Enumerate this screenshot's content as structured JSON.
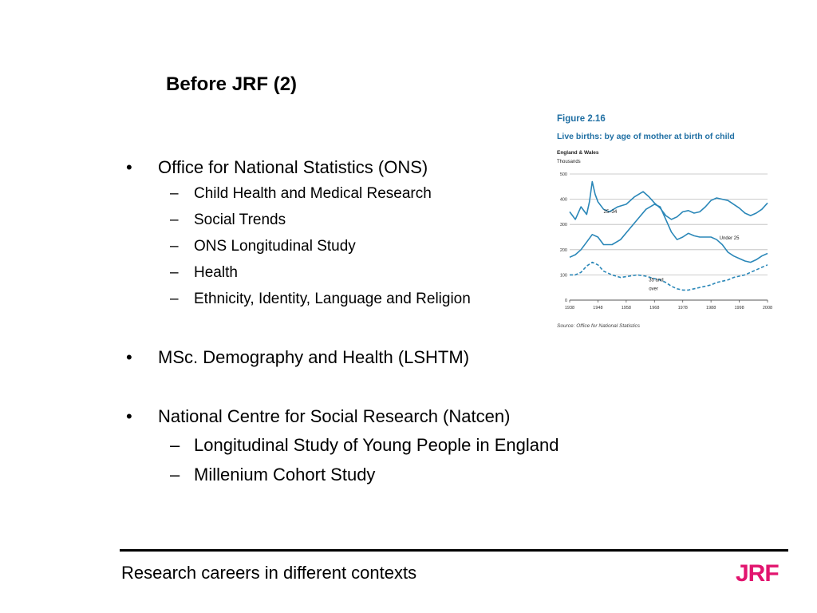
{
  "slide": {
    "title": "Before JRF (2)",
    "bullets": [
      {
        "text": "Office for National Statistics (ONS)",
        "subs": [
          "Child Health and Medical Research",
          "Social Trends",
          "ONS Longitudinal Study",
          "Health",
          "Ethnicity, Identity, Language and Religion"
        ]
      },
      {
        "text": "MSc. Demography and Health (LSHTM)",
        "subs": []
      },
      {
        "text": "National Centre for Social Research (Natcen)",
        "subs": [
          "Longitudinal Study of Young People in England",
          "Millenium Cohort Study"
        ]
      }
    ],
    "bullet_glyph": "•",
    "dash_glyph": "–"
  },
  "footer": {
    "text": "Research careers in different contexts",
    "logo": "JRF"
  },
  "chart_data": {
    "type": "line",
    "figure_label": "Figure 2.16",
    "title": "Live births: by age of mother at birth of child",
    "subtitle": "England & Wales",
    "ylabel": "Thousands",
    "ylim": [
      0,
      500
    ],
    "xlim": [
      1938,
      2008
    ],
    "xticks": [
      "1938",
      "1948",
      "1958",
      "1968",
      "1978",
      "1988",
      "1998",
      "2008"
    ],
    "yticks": [
      "0",
      "100",
      "200",
      "300",
      "400",
      "500"
    ],
    "grid": true,
    "source": "Source: Office for National Statistics",
    "colors": {
      "line": "#2a87b8",
      "title": "#1f6fa3",
      "grid": "#bbbbbb"
    },
    "series": [
      {
        "name": "25–34",
        "style": "solid",
        "x": [
          1938,
          1940,
          1942,
          1944,
          1945,
          1946,
          1947,
          1948,
          1950,
          1952,
          1955,
          1958,
          1961,
          1964,
          1966,
          1968,
          1970,
          1972,
          1974,
          1976,
          1978,
          1980,
          1982,
          1984,
          1986,
          1988,
          1990,
          1992,
          1994,
          1996,
          1998,
          2000,
          2002,
          2004,
          2006,
          2008
        ],
        "y": [
          350,
          320,
          370,
          340,
          390,
          470,
          420,
          390,
          360,
          350,
          370,
          380,
          410,
          430,
          410,
          385,
          365,
          335,
          320,
          330,
          350,
          355,
          345,
          350,
          370,
          395,
          405,
          400,
          395,
          380,
          365,
          345,
          335,
          345,
          360,
          385
        ]
      },
      {
        "name": "Under 25",
        "style": "solid",
        "x": [
          1938,
          1940,
          1942,
          1944,
          1946,
          1948,
          1950,
          1953,
          1956,
          1959,
          1962,
          1965,
          1968,
          1970,
          1972,
          1974,
          1976,
          1978,
          1980,
          1982,
          1984,
          1986,
          1988,
          1990,
          1992,
          1994,
          1996,
          1998,
          2000,
          2002,
          2004,
          2006,
          2008
        ],
        "y": [
          170,
          180,
          200,
          230,
          260,
          250,
          220,
          220,
          240,
          280,
          320,
          360,
          380,
          370,
          320,
          270,
          240,
          250,
          265,
          255,
          250,
          250,
          250,
          240,
          220,
          190,
          175,
          165,
          155,
          150,
          160,
          175,
          185
        ]
      },
      {
        "name": "35 and over",
        "style": "dashed",
        "x": [
          1938,
          1940,
          1942,
          1944,
          1946,
          1948,
          1950,
          1953,
          1956,
          1959,
          1962,
          1965,
          1968,
          1970,
          1972,
          1974,
          1976,
          1978,
          1980,
          1982,
          1984,
          1986,
          1988,
          1990,
          1992,
          1994,
          1996,
          1998,
          2000,
          2002,
          2004,
          2006,
          2008
        ],
        "y": [
          100,
          100,
          110,
          135,
          150,
          140,
          115,
          100,
          90,
          95,
          100,
          95,
          85,
          80,
          70,
          55,
          45,
          40,
          40,
          45,
          50,
          55,
          60,
          70,
          75,
          80,
          90,
          95,
          100,
          110,
          120,
          130,
          140
        ]
      }
    ],
    "labels": [
      {
        "text": "25–34",
        "x": 1950,
        "y": 345
      },
      {
        "text": "Under 25",
        "x": 1991,
        "y": 240
      },
      {
        "text": "35 and",
        "x": 1966,
        "y": 75
      },
      {
        "text": "over",
        "x": 1966,
        "y": 40
      }
    ]
  }
}
